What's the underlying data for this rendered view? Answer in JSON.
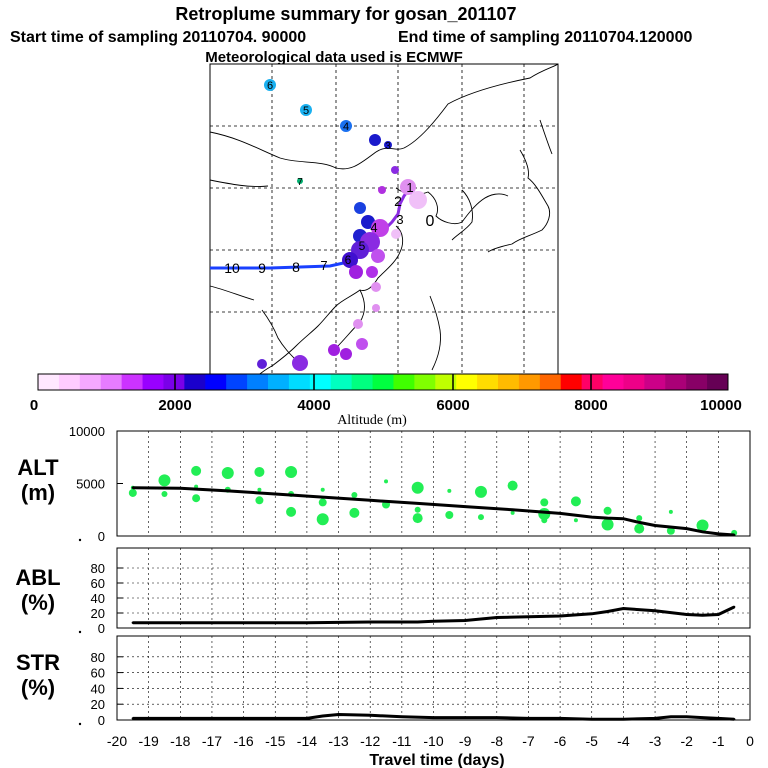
{
  "header": {
    "title": "Retroplume summary for gosan_201107",
    "start": "Start time of sampling 20110704. 90000",
    "end": "End time of sampling 20110704.120000",
    "met": "Meteorological data used is ECMWF"
  },
  "colorbar": {
    "ticks": [
      "0",
      "2000",
      "4000",
      "6000",
      "8000",
      "10000"
    ],
    "label": "Altitude (m)",
    "colors": [
      "#ffe8ff",
      "#ffccff",
      "#f5a8ff",
      "#e77cff",
      "#cc33ff",
      "#9900ff",
      "#7a00e8",
      "#1a00cc",
      "#0000ff",
      "#0044ff",
      "#0080ff",
      "#00b0ff",
      "#00dcff",
      "#00ffff",
      "#00ffc0",
      "#00ff80",
      "#00ff40",
      "#40ff00",
      "#80ff00",
      "#c0ff00",
      "#ffff00",
      "#ffdd00",
      "#ffbb00",
      "#ff9900",
      "#ff6600",
      "#ff0000",
      "#ff0066",
      "#ff0099",
      "#ee0088",
      "#cc0088",
      "#aa0077",
      "#880066",
      "#660055"
    ]
  },
  "map": {
    "labels": [
      {
        "text": "6",
        "color": "#1aa0e6"
      },
      {
        "text": "5",
        "color": "#1aa0e6"
      },
      {
        "text": "4",
        "color": "#1a60e6"
      },
      {
        "text": "3",
        "color": "#1a20cc"
      },
      {
        "text": "7",
        "color": "#00b070"
      }
    ],
    "trajectory_labels": [
      "10",
      "9",
      "8",
      "7",
      "6",
      "5",
      "4",
      "3",
      "2",
      "1",
      "0"
    ]
  },
  "chart_data": [
    {
      "type": "line+scatter",
      "panel": "ALT",
      "ylabel": "ALT\n(m)",
      "ylabel_line1": "ALT",
      "ylabel_line2": "(m)",
      "ylim": [
        0,
        10000
      ],
      "yticks": [
        "10000",
        "5000",
        "0"
      ],
      "x": [
        -19.5,
        -18,
        -16.5,
        -15,
        -13.5,
        -12,
        -10.5,
        -9,
        -7.5,
        -6,
        -5,
        -4.5,
        -4,
        -3.5,
        -3,
        -2,
        -1.5,
        -1,
        -0.5
      ],
      "y": [
        4600,
        4550,
        4300,
        4000,
        3700,
        3400,
        3100,
        2800,
        2500,
        2150,
        1800,
        1700,
        1650,
        1300,
        1000,
        700,
        400,
        200,
        100
      ],
      "scatter": [
        {
          "x": -19.5,
          "y": 4600
        },
        {
          "x": -19.5,
          "y": 4100
        },
        {
          "x": -18.5,
          "y": 5300
        },
        {
          "x": -18.5,
          "y": 4000
        },
        {
          "x": -17.5,
          "y": 6200
        },
        {
          "x": -17.5,
          "y": 4700
        },
        {
          "x": -17.5,
          "y": 3600
        },
        {
          "x": -16.5,
          "y": 6000
        },
        {
          "x": -16.5,
          "y": 4400
        },
        {
          "x": -15.5,
          "y": 6100
        },
        {
          "x": -15.5,
          "y": 4400
        },
        {
          "x": -15.5,
          "y": 3400
        },
        {
          "x": -14.5,
          "y": 6100
        },
        {
          "x": -14.5,
          "y": 4000
        },
        {
          "x": -14.5,
          "y": 2300
        },
        {
          "x": -13.5,
          "y": 4400
        },
        {
          "x": -13.5,
          "y": 3200
        },
        {
          "x": -13.5,
          "y": 1600
        },
        {
          "x": -12.5,
          "y": 3900
        },
        {
          "x": -12.5,
          "y": 2200
        },
        {
          "x": -11.5,
          "y": 5200
        },
        {
          "x": -11.5,
          "y": 3000
        },
        {
          "x": -10.5,
          "y": 4600
        },
        {
          "x": -10.5,
          "y": 2500
        },
        {
          "x": -10.5,
          "y": 1700
        },
        {
          "x": -9.5,
          "y": 4300
        },
        {
          "x": -9.5,
          "y": 2000
        },
        {
          "x": -8.5,
          "y": 4200
        },
        {
          "x": -8.5,
          "y": 1800
        },
        {
          "x": -7.5,
          "y": 4800
        },
        {
          "x": -7.5,
          "y": 2200
        },
        {
          "x": -6.5,
          "y": 3200
        },
        {
          "x": -6.5,
          "y": 2100
        },
        {
          "x": -6.5,
          "y": 1500
        },
        {
          "x": -5.5,
          "y": 3300
        },
        {
          "x": -5.5,
          "y": 1500
        },
        {
          "x": -4.5,
          "y": 2400
        },
        {
          "x": -4.5,
          "y": 1100
        },
        {
          "x": -3.5,
          "y": 1700
        },
        {
          "x": -3.5,
          "y": 700
        },
        {
          "x": -2.5,
          "y": 2300
        },
        {
          "x": -2.5,
          "y": 500
        },
        {
          "x": -1.5,
          "y": 1000
        },
        {
          "x": -0.5,
          "y": 300
        }
      ]
    },
    {
      "type": "line",
      "panel": "ABL",
      "ylabel": "ABL\n(%)",
      "ylabel_line1": "ABL",
      "ylabel_line2": "(%)",
      "ylim": [
        0,
        100
      ],
      "yticks": [
        "80",
        "60",
        "40",
        "20",
        "0"
      ],
      "x": [
        -19.5,
        -18,
        -16,
        -14,
        -12,
        -10.5,
        -10,
        -9,
        -8,
        -7,
        -6,
        -5,
        -4.5,
        -4,
        -3,
        -2,
        -1.5,
        -1,
        -0.5
      ],
      "y": [
        7,
        7,
        7,
        7,
        8,
        8,
        9,
        10,
        14,
        15,
        16,
        19,
        22,
        26,
        23,
        18,
        17,
        18,
        28
      ]
    },
    {
      "type": "line",
      "panel": "STR",
      "ylabel": "STR\n(%)",
      "ylabel_line1": "STR",
      "ylabel_line2": "(%)",
      "ylim": [
        0,
        100
      ],
      "yticks": [
        "80",
        "60",
        "40",
        "20",
        "0"
      ],
      "xlabel": "Travel time (days)",
      "xticks": [
        "-20",
        "-19",
        "-18",
        "-17",
        "-16",
        "-15",
        "-14",
        "-13",
        "-12",
        "-11",
        "-10",
        "-9",
        "-8",
        "-7",
        "-6",
        "-5",
        "-4",
        "-3",
        "-2",
        "-1",
        "0"
      ],
      "x": [
        -19.5,
        -18,
        -16,
        -15,
        -14,
        -13.5,
        -13,
        -12,
        -11,
        -10,
        -9,
        -8,
        -7,
        -6,
        -5,
        -4,
        -3,
        -2.5,
        -2,
        -1.5,
        -1,
        -0.5
      ],
      "y": [
        2,
        2,
        2,
        2,
        2,
        5,
        7,
        6,
        4,
        3,
        3,
        3,
        2,
        2,
        1,
        1,
        2,
        4,
        4,
        3,
        2,
        1
      ]
    }
  ]
}
